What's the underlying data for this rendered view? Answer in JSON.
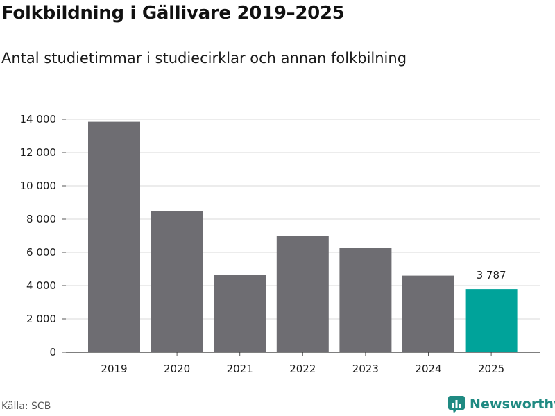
{
  "chart_data": {
    "type": "bar",
    "title": "Folkbildning i Gällivare 2019–2025",
    "subtitle": "Antal studietimmar i studiecirklar och annan folkbilning",
    "categories": [
      "2019",
      "2020",
      "2021",
      "2022",
      "2023",
      "2024",
      "2025"
    ],
    "values": [
      13850,
      8500,
      4650,
      7000,
      6250,
      4600,
      3787
    ],
    "ylim": [
      0,
      14000
    ],
    "yticks": [
      0,
      2000,
      4000,
      6000,
      8000,
      10000,
      12000,
      14000
    ],
    "ytick_labels": [
      "0",
      "2 000",
      "4 000",
      "6 000",
      "8 000",
      "10 000",
      "12 000",
      "14 000"
    ],
    "grid": true,
    "highlight_index": 6,
    "highlight_label": "3 787",
    "colors": {
      "bar": "#6e6d72",
      "highlight": "#00a39a",
      "grid": "#d9d9d9",
      "axis": "#333333"
    },
    "xlabel": "",
    "ylabel": ""
  },
  "source": "Källa: SCB",
  "brand": {
    "name": "Newsworthy",
    "icon": "newsworthy-logo-icon"
  }
}
